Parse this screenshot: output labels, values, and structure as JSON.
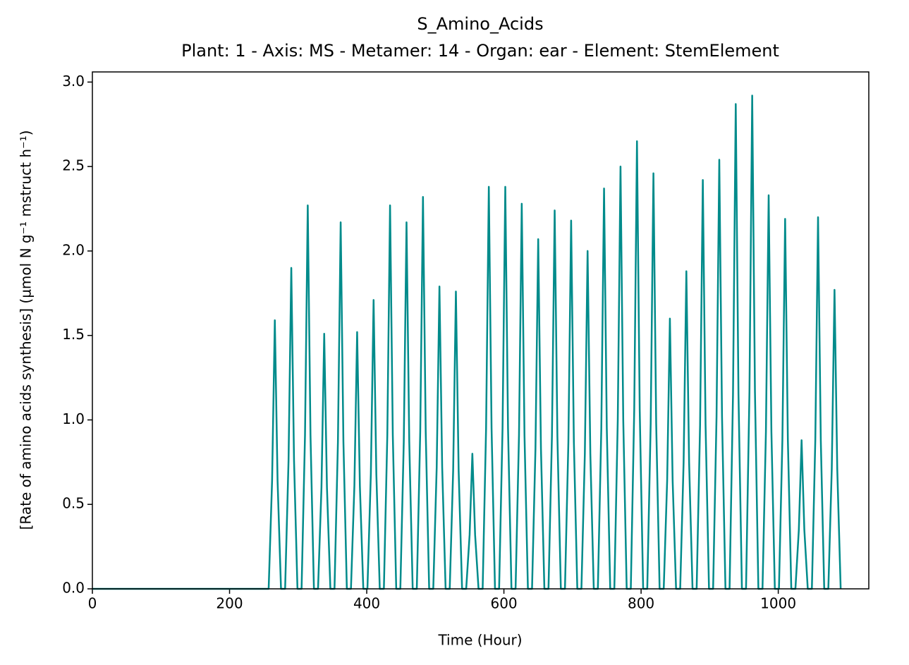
{
  "chart_data": {
    "type": "line",
    "title": "S_Amino_Acids",
    "subtitle": "Plant: 1 - Axis: MS - Metamer: 14 - Organ: ear - Element: StemElement",
    "x_label": "Time (Hour)",
    "y_label": "[Rate of amino acids synthesis] (µmol N g⁻¹ mstruct h⁻¹)",
    "xlim": [
      0,
      1132
    ],
    "ylim": [
      0,
      3.06
    ],
    "xticks": [
      0,
      200,
      400,
      600,
      800,
      1000
    ],
    "yticks": [
      {
        "value": 0,
        "label": "0.0"
      },
      0.5,
      {
        "value": 1,
        "label": "1.0"
      },
      1.5,
      {
        "value": 2,
        "label": "2.0"
      },
      2.5,
      {
        "value": 3,
        "label": "3.0"
      }
    ],
    "x": [
      0,
      257,
      262,
      266,
      270,
      275,
      281,
      286,
      290,
      294,
      299,
      305,
      310,
      314,
      318,
      323,
      329,
      334,
      338,
      342,
      347,
      353,
      358,
      362,
      366,
      371,
      377,
      382,
      386,
      390,
      395,
      401,
      406,
      410,
      414,
      419,
      425,
      430,
      434,
      438,
      443,
      449,
      454,
      458,
      462,
      467,
      473,
      478,
      482,
      486,
      491,
      497,
      502,
      506,
      510,
      515,
      521,
      526,
      530,
      534,
      539,
      545,
      550,
      554,
      558,
      563,
      569,
      574,
      578,
      582,
      587,
      593,
      598,
      602,
      606,
      611,
      617,
      622,
      626,
      630,
      635,
      641,
      646,
      650,
      654,
      659,
      665,
      670,
      674,
      678,
      683,
      689,
      694,
      698,
      702,
      707,
      713,
      718,
      722,
      726,
      731,
      737,
      742,
      746,
      750,
      755,
      761,
      766,
      770,
      774,
      779,
      785,
      790,
      794,
      798,
      803,
      809,
      814,
      818,
      822,
      827,
      833,
      838,
      842,
      846,
      851,
      857,
      862,
      866,
      870,
      875,
      881,
      886,
      890,
      894,
      899,
      905,
      910,
      914,
      918,
      923,
      929,
      934,
      938,
      942,
      947,
      953,
      958,
      962,
      966,
      971,
      977,
      982,
      986,
      990,
      995,
      1001,
      1006,
      1010,
      1014,
      1019,
      1025,
      1030,
      1034,
      1038,
      1043,
      1049,
      1054,
      1058,
      1062,
      1067,
      1073,
      1078,
      1082,
      1086,
      1091
    ],
    "series": [
      {
        "name": "S_Amino_Acids",
        "color": "#008b8b",
        "values": [
          0,
          0,
          0.64,
          1.59,
          0.64,
          0,
          0,
          0.76,
          1.9,
          0.76,
          0,
          0,
          0.91,
          2.27,
          0.91,
          0,
          0,
          0.6,
          1.51,
          0.6,
          0,
          0,
          0.87,
          2.17,
          0.87,
          0,
          0,
          0.61,
          1.52,
          0.61,
          0,
          0,
          0.68,
          1.71,
          0.68,
          0,
          0,
          0.91,
          2.27,
          0.91,
          0,
          0,
          0.87,
          2.17,
          0.87,
          0,
          0,
          0.93,
          2.32,
          0.93,
          0,
          0,
          0.72,
          1.79,
          0.72,
          0,
          0,
          0.7,
          1.76,
          0.7,
          0,
          0,
          0.32,
          0.8,
          0.32,
          0,
          0,
          0.95,
          2.38,
          0.95,
          0,
          0,
          0.95,
          2.38,
          0.95,
          0,
          0,
          0.91,
          2.28,
          0.91,
          0,
          0,
          0.83,
          2.07,
          0.83,
          0,
          0,
          0.9,
          2.24,
          0.9,
          0,
          0,
          0.87,
          2.18,
          0.87,
          0,
          0,
          0.8,
          2.0,
          0.8,
          0,
          0,
          0.95,
          2.37,
          0.95,
          0,
          0,
          1.0,
          2.5,
          1.0,
          0,
          0,
          1.06,
          2.65,
          1.06,
          0,
          0,
          0.98,
          2.46,
          0.98,
          0,
          0,
          0.64,
          1.6,
          0.64,
          0,
          0,
          0.75,
          1.88,
          0.75,
          0,
          0,
          0.97,
          2.42,
          0.97,
          0,
          0,
          1.02,
          2.54,
          1.02,
          0,
          0,
          1.15,
          2.87,
          1.15,
          0,
          0,
          1.17,
          2.92,
          1.17,
          0,
          0,
          0.93,
          2.33,
          0.93,
          0,
          0,
          0.88,
          2.19,
          0.88,
          0,
          0,
          0.35,
          0.88,
          0.35,
          0,
          0,
          0.88,
          2.2,
          0.88,
          0,
          0,
          0.71,
          1.77,
          0.71,
          0
        ]
      }
    ]
  }
}
